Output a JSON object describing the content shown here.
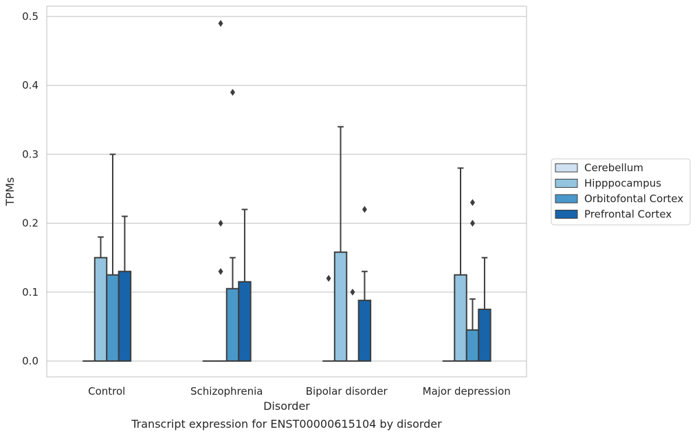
{
  "chart_data": {
    "type": "box",
    "title": "",
    "caption": "Transcript expression for ENST00000615104 by disorder",
    "xlabel": "Disorder",
    "ylabel": "TPMs",
    "ylim": [
      -0.023,
      0.515
    ],
    "yticks": [
      0.0,
      0.1,
      0.2,
      0.3,
      0.4,
      0.5
    ],
    "ytick_labels": [
      "0.0",
      "0.1",
      "0.2",
      "0.3",
      "0.4",
      "0.5"
    ],
    "grid": true,
    "legend_position": "right",
    "categories": [
      "Control",
      "Schizophrenia",
      "Bipolar disorder",
      "Major depression"
    ],
    "series": [
      {
        "name": "Cerebellum",
        "color": "#d0e1f2",
        "boxes": [
          {
            "q1": 0,
            "q3": 0,
            "whislo": 0,
            "whishi": 0,
            "fliers": []
          },
          {
            "q1": 0,
            "q3": 0,
            "whislo": 0,
            "whishi": 0,
            "fliers": []
          },
          {
            "q1": 0,
            "q3": 0,
            "whislo": 0,
            "whishi": 0,
            "fliers": [
              0.12
            ]
          },
          {
            "q1": 0,
            "q3": 0,
            "whislo": 0,
            "whishi": 0,
            "fliers": []
          }
        ]
      },
      {
        "name": "Hipppocampus",
        "color": "#94c4df",
        "boxes": [
          {
            "q1": 0,
            "q3": 0.15,
            "whislo": 0,
            "whishi": 0.18,
            "fliers": []
          },
          {
            "q1": 0,
            "q3": 0,
            "whislo": 0,
            "whishi": 0,
            "fliers": [
              0.49,
              0.2,
              0.13
            ]
          },
          {
            "q1": 0,
            "q3": 0.158,
            "whislo": 0,
            "whishi": 0.34,
            "fliers": []
          },
          {
            "q1": 0,
            "q3": 0.125,
            "whislo": 0,
            "whishi": 0.28,
            "fliers": []
          }
        ]
      },
      {
        "name": "Orbitofontal Cortex",
        "color": "#4a98c9",
        "boxes": [
          {
            "q1": 0,
            "q3": 0.125,
            "whislo": 0,
            "whishi": 0.3,
            "fliers": []
          },
          {
            "q1": 0,
            "q3": 0.105,
            "whislo": 0,
            "whishi": 0.15,
            "fliers": [
              0.39
            ]
          },
          {
            "q1": 0,
            "q3": 0,
            "whislo": 0,
            "whishi": 0,
            "fliers": [
              0.1
            ]
          },
          {
            "q1": 0,
            "q3": 0.045,
            "whislo": 0,
            "whishi": 0.09,
            "fliers": [
              0.23,
              0.2
            ]
          }
        ]
      },
      {
        "name": "Prefrontal Cortex",
        "color": "#1764ab",
        "boxes": [
          {
            "q1": 0,
            "q3": 0.13,
            "whislo": 0,
            "whishi": 0.21,
            "fliers": []
          },
          {
            "q1": 0,
            "q3": 0.115,
            "whislo": 0,
            "whishi": 0.22,
            "fliers": []
          },
          {
            "q1": 0,
            "q3": 0.088,
            "whislo": 0,
            "whishi": 0.13,
            "fliers": [
              0.22
            ]
          },
          {
            "q1": 0,
            "q3": 0.075,
            "whislo": 0,
            "whishi": 0.15,
            "fliers": []
          }
        ]
      }
    ]
  }
}
